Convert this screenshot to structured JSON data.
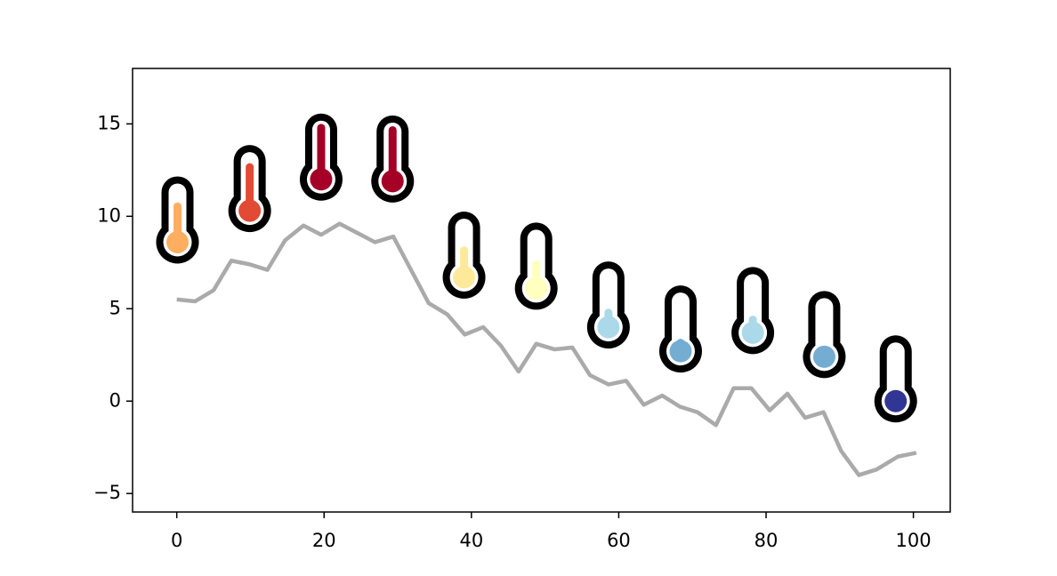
{
  "chart_data": {
    "type": "line",
    "xlim": [
      -6,
      105
    ],
    "ylim": [
      -6,
      18
    ],
    "xticks": [
      0,
      20,
      40,
      60,
      80,
      100
    ],
    "yticks": [
      {
        "value": -5,
        "label": "−5"
      },
      0,
      5,
      10,
      15
    ],
    "series": [
      {
        "color": "#aaaaaa",
        "x": [
          0,
          2.5,
          5,
          7.4,
          9.9,
          12.3,
          14.7,
          17.2,
          19.6,
          22.1,
          24.5,
          26.9,
          29.4,
          31.8,
          34.2,
          36.7,
          39.1,
          41.6,
          44.0,
          46.4,
          48.8,
          51.3,
          53.7,
          56.1,
          58.6,
          61.0,
          63.4,
          65.9,
          68.3,
          70.7,
          73.2,
          75.6,
          78.0,
          80.5,
          82.9,
          85.3,
          87.8,
          90.2,
          92.6,
          95.0,
          97.9,
          100.4
        ],
        "values": [
          5.5,
          5.4,
          6.0,
          7.6,
          7.4,
          7.1,
          8.7,
          9.5,
          9.0,
          9.6,
          9.1,
          8.6,
          8.9,
          7.1,
          5.3,
          4.7,
          3.6,
          4.0,
          3.0,
          1.6,
          3.1,
          2.8,
          2.9,
          1.4,
          0.9,
          1.1,
          -0.2,
          0.3,
          -0.3,
          -0.6,
          -1.3,
          0.7,
          0.7,
          -0.5,
          0.4,
          -0.9,
          -0.6,
          -2.7,
          -4.0,
          -3.7,
          -3.0,
          -2.8
        ]
      }
    ],
    "markers": {
      "x": [
        0.1,
        9.9,
        19.6,
        29.3,
        39.0,
        48.8,
        58.6,
        68.4,
        78.2,
        87.9,
        97.6
      ],
      "values": [
        8.6,
        10.3,
        12.0,
        11.9,
        6.7,
        6.1,
        4.0,
        2.7,
        3.7,
        2.4,
        0.0
      ],
      "colors": [
        "#fdae61",
        "#e34a33",
        "#a50026",
        "#a50026",
        "#fee99a",
        "#ffffbf",
        "#abd9e9",
        "#74add1",
        "#abd9e9",
        "#74add1",
        "#313695"
      ]
    }
  }
}
